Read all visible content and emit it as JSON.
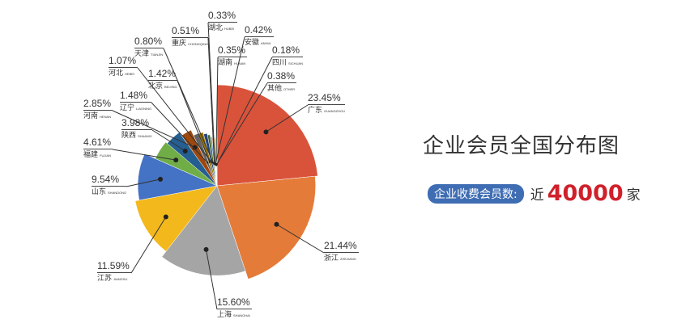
{
  "title": "企业会员全国分布图",
  "subtitle": {
    "badge": "企业收费会员数:",
    "prefix": "近",
    "count": "40000",
    "unit": "家"
  },
  "chart_data": {
    "type": "pie",
    "unit": "%",
    "slices": [
      {
        "name": "广东",
        "pinyin": "GUANGZHOU",
        "value": 23.45,
        "label": "23.45%",
        "color": "#d9533b"
      },
      {
        "name": "浙江",
        "pinyin": "ZHEJIANG",
        "value": 21.44,
        "label": "21.44%",
        "color": "#e57b39"
      },
      {
        "name": "上海",
        "pinyin": "SHANGHAI",
        "value": 15.6,
        "label": "15.60%",
        "color": "#a5a5a5"
      },
      {
        "name": "江苏",
        "pinyin": "JIANGSU",
        "value": 11.59,
        "label": "11.59%",
        "color": "#f3b81b"
      },
      {
        "name": "山东",
        "pinyin": "SHANDONG",
        "value": 9.54,
        "label": "9.54%",
        "color": "#4472c4"
      },
      {
        "name": "福建",
        "pinyin": "FUJIAN",
        "value": 4.61,
        "label": "4.61%",
        "color": "#70ad47"
      },
      {
        "name": "陕西",
        "pinyin": "SHAANXI",
        "value": 3.98,
        "label": "3.98%",
        "color": "#255e91"
      },
      {
        "name": "河南",
        "pinyin": "HENAN",
        "value": 2.85,
        "label": "2.85%",
        "color": "#9e480e"
      },
      {
        "name": "辽宁",
        "pinyin": "LIAONING",
        "value": 1.48,
        "label": "1.48%",
        "color": "#636363"
      },
      {
        "name": "北京",
        "pinyin": "BEIJING",
        "value": 1.42,
        "label": "1.42%",
        "color": "#997300"
      },
      {
        "name": "河北",
        "pinyin": "HEBEI",
        "value": 1.07,
        "label": "1.07%",
        "color": "#264478"
      },
      {
        "name": "天津",
        "pinyin": "TIANJIN",
        "value": 0.8,
        "label": "0.80%",
        "color": "#43682b"
      },
      {
        "name": "重庆",
        "pinyin": "CHONGQING",
        "value": 0.51,
        "label": "0.51%",
        "color": "#698ed0"
      },
      {
        "name": "湖北",
        "pinyin": "HUBEI",
        "value": 0.33,
        "label": "0.33%",
        "color": "#f1975a"
      },
      {
        "name": "安徽",
        "pinyin": "ANHUI",
        "value": 0.42,
        "label": "0.42%",
        "color": "#b7b7b7"
      },
      {
        "name": "湖南",
        "pinyin": "HUNAN",
        "value": 0.35,
        "label": "0.35%",
        "color": "#ffcd33"
      },
      {
        "name": "四川",
        "pinyin": "SICHUAN",
        "value": 0.18,
        "label": "0.18%",
        "color": "#7cafdd"
      },
      {
        "name": "其他",
        "pinyin": "OTHER",
        "value": 0.38,
        "label": "0.38%",
        "color": "#8cc168"
      }
    ]
  }
}
